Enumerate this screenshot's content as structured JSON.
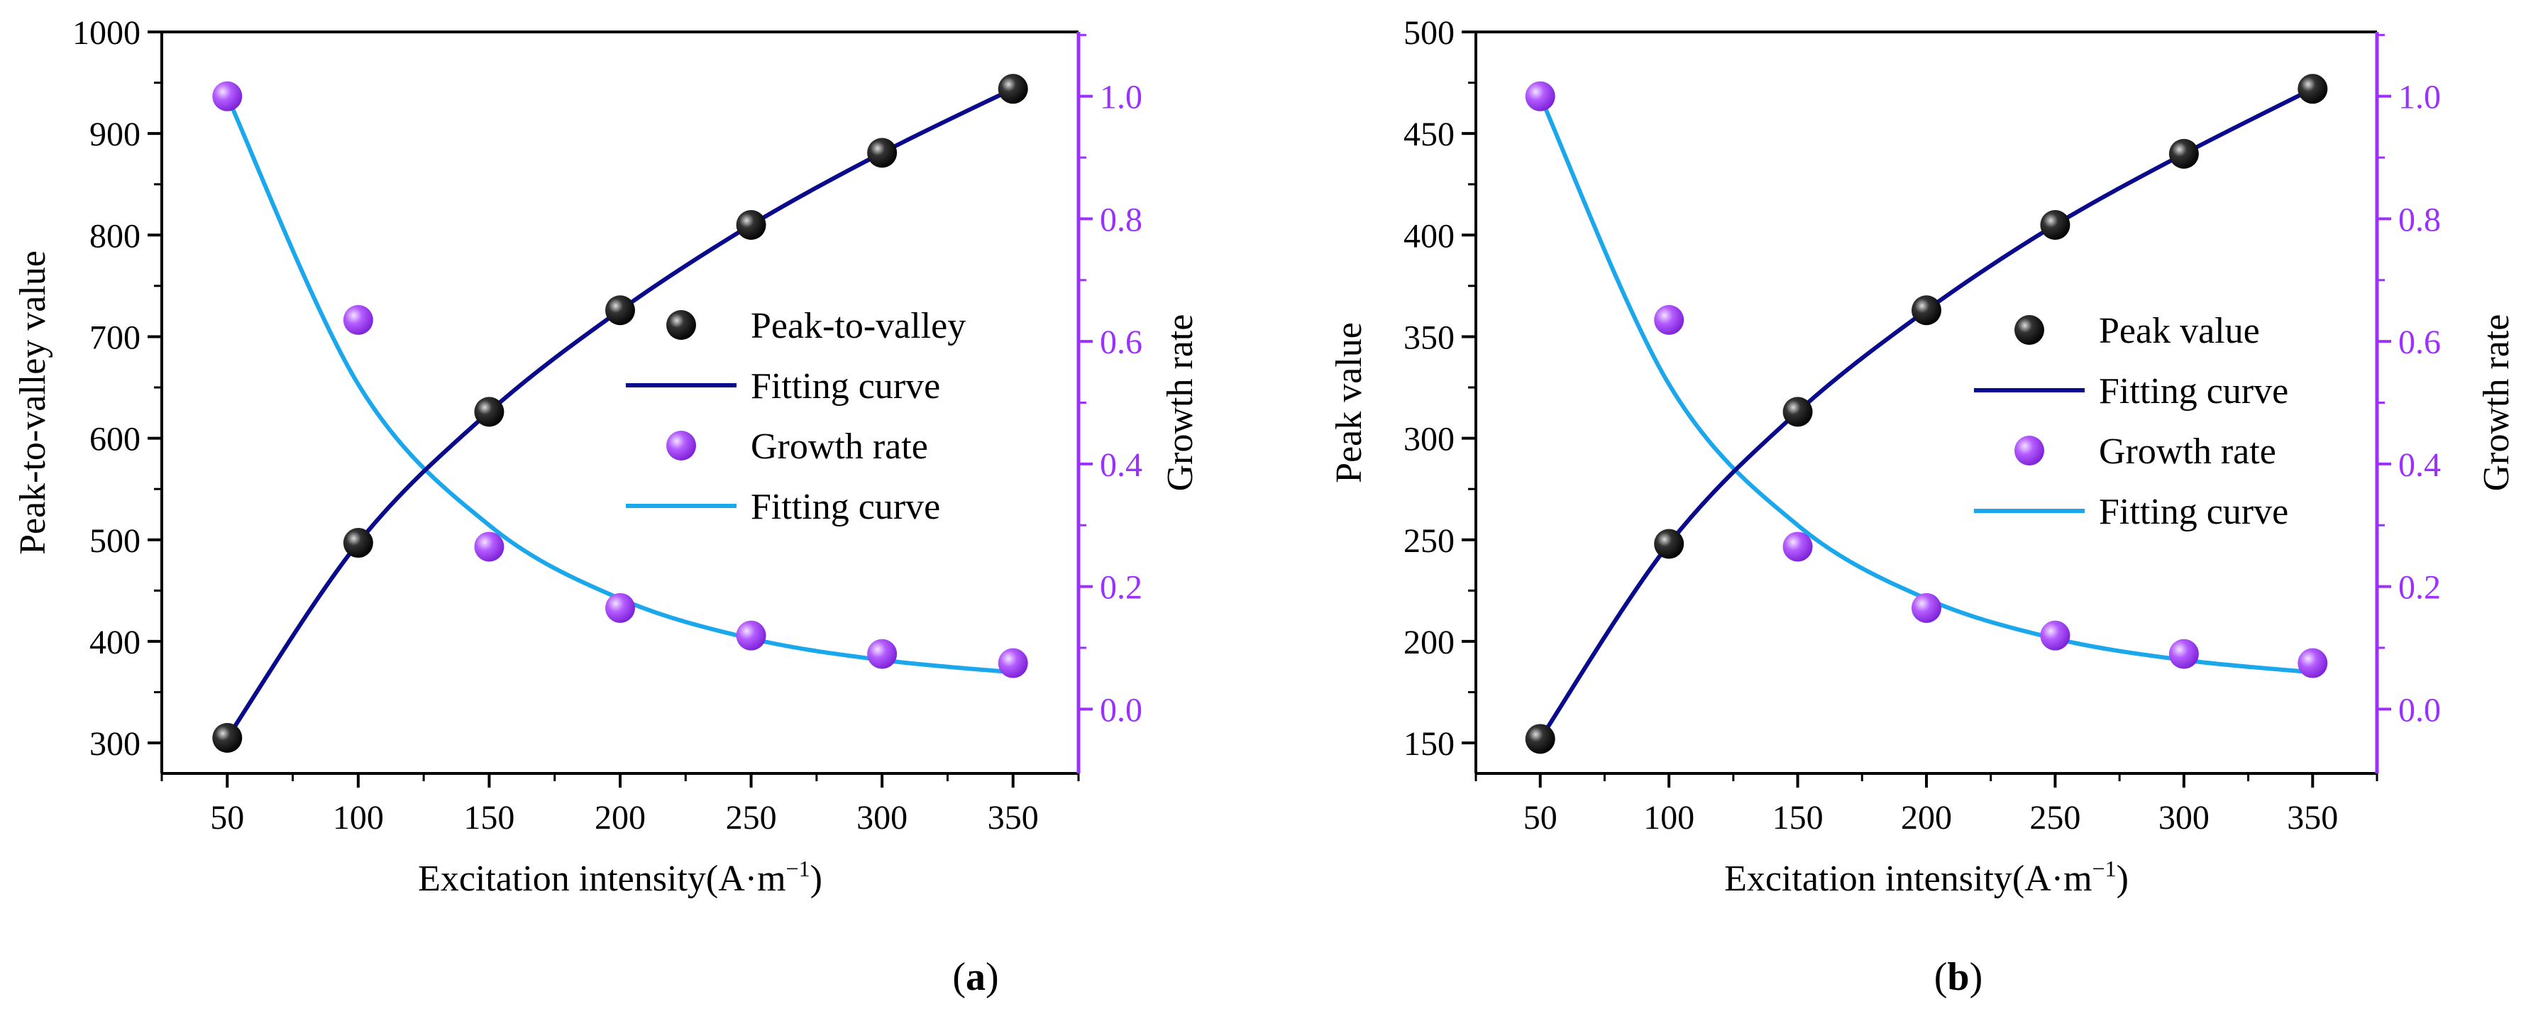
{
  "chart_data": [
    {
      "type": "scatter",
      "title": "",
      "caption": "a",
      "xlabel": "Excitation intensity(A·m",
      "xlabel_sup": "−1",
      "xlabel_end": ")",
      "ylabel": "Peak-to-valley value",
      "y2label": "Growth rate",
      "xlim": [
        25,
        375
      ],
      "ylim": [
        270,
        1000
      ],
      "y2lim": [
        -0.105,
        1.105
      ],
      "xticks": [
        50,
        100,
        150,
        200,
        250,
        300,
        350
      ],
      "yticks": [
        300,
        400,
        500,
        600,
        700,
        800,
        900,
        1000
      ],
      "y2ticks": [
        0.0,
        0.2,
        0.4,
        0.6,
        0.8,
        1.0
      ],
      "x": [
        50,
        100,
        150,
        200,
        250,
        300,
        350
      ],
      "series": [
        {
          "name": "Peak-to-valley",
          "axis": "left",
          "kind": "points",
          "values": [
            305,
            497,
            626,
            726,
            810,
            881,
            944
          ]
        },
        {
          "name": "Fitting curve",
          "axis": "left",
          "kind": "curve",
          "values": [
            305,
            497,
            626,
            726,
            810,
            881,
            944
          ]
        },
        {
          "name": "Growth rate",
          "axis": "right",
          "kind": "points",
          "values": [
            1.0,
            0.635,
            0.265,
            0.165,
            0.12,
            0.09,
            0.075
          ]
        },
        {
          "name": "Fitting curve",
          "axis": "right",
          "kind": "curve",
          "values": [
            1.0,
            0.53,
            0.3,
            0.18,
            0.115,
            0.08,
            0.06
          ]
        }
      ],
      "legend": {
        "position": "center-right",
        "entries": [
          "Peak-to-valley",
          "Fitting curve",
          "Growth rate",
          "Fitting curve"
        ]
      }
    },
    {
      "type": "scatter",
      "title": "",
      "caption": "b",
      "xlabel": "Excitation intensity(A·m",
      "xlabel_sup": "−1",
      "xlabel_end": ")",
      "ylabel": "Peak value",
      "y2label": "Growth rate",
      "xlim": [
        25,
        375
      ],
      "ylim": [
        135,
        500
      ],
      "y2lim": [
        -0.105,
        1.105
      ],
      "xticks": [
        50,
        100,
        150,
        200,
        250,
        300,
        350
      ],
      "yticks": [
        150,
        200,
        250,
        300,
        350,
        400,
        450,
        500
      ],
      "y2ticks": [
        0.0,
        0.2,
        0.4,
        0.6,
        0.8,
        1.0
      ],
      "x": [
        50,
        100,
        150,
        200,
        250,
        300,
        350
      ],
      "series": [
        {
          "name": "Peak value",
          "axis": "left",
          "kind": "points",
          "values": [
            152,
            248,
            313,
            363,
            405,
            440,
            472
          ]
        },
        {
          "name": "Fitting curve",
          "axis": "left",
          "kind": "curve",
          "values": [
            152,
            248,
            313,
            363,
            405,
            440,
            472
          ]
        },
        {
          "name": "Growth rate",
          "axis": "right",
          "kind": "points",
          "values": [
            1.0,
            0.635,
            0.265,
            0.165,
            0.12,
            0.09,
            0.075
          ]
        },
        {
          "name": "Fitting curve",
          "axis": "right",
          "kind": "curve",
          "values": [
            1.0,
            0.53,
            0.3,
            0.18,
            0.115,
            0.08,
            0.06
          ]
        }
      ],
      "legend": {
        "position": "center-right",
        "entries": [
          "Peak value",
          "Fitting curve",
          "Growth rate",
          "Fitting curve"
        ]
      }
    }
  ],
  "colors": {
    "primary_curve": "#0a0a8c",
    "growth_curve": "#1aa7ec",
    "growth_axis": "#9b30ff",
    "growth_marker": "#b050ff",
    "peak_marker": "#111111",
    "axis": "#000000"
  }
}
